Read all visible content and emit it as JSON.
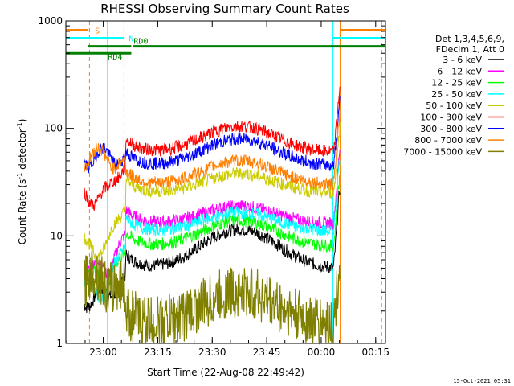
{
  "chart_data": {
    "type": "line",
    "title": "RHESSI Observing Summary Count Rates",
    "xlabel": "Start Time (22-Aug-08 22:49:42)",
    "ylabel_main": "Count Rate (s",
    "ylabel_sup1": "-1",
    "ylabel_mid": " detector",
    "ylabel_sup2": "-1",
    "ylabel_end": ")",
    "y_scale": "log",
    "ylim": [
      1,
      1000
    ],
    "xlim_minutes": [
      0,
      88
    ],
    "x_ticks": [
      {
        "label": "23:00",
        "min": 10.3
      },
      {
        "label": "23:15",
        "min": 25.3
      },
      {
        "label": "23:30",
        "min": 40.3
      },
      {
        "label": "23:45",
        "min": 55.3
      },
      {
        "label": "00:00",
        "min": 70.3
      },
      {
        "label": "00:15",
        "min": 85.3
      }
    ],
    "y_ticks": [
      {
        "label": "1",
        "value": 1
      },
      {
        "label": "10",
        "value": 10
      },
      {
        "label": "100",
        "value": 100
      },
      {
        "label": "1000",
        "value": 1000
      }
    ],
    "legend_header": [
      "Det 1,3,4,5,6,9,",
      "FDecim 1, Att 0"
    ],
    "series": [
      {
        "name": "3 - 6 keV",
        "color": "#000000",
        "night": 2.7,
        "base": 5.0,
        "peak": 11.5,
        "jump": 30
      },
      {
        "name": "6 - 12 keV",
        "color": "#ff00ff",
        "night": 5.0,
        "base": 13.0,
        "peak": 19.0,
        "jump": 70
      },
      {
        "name": "12 - 25 keV",
        "color": "#00ff00",
        "night": 4.0,
        "base": 8.0,
        "peak": 14.0,
        "jump": 40
      },
      {
        "name": "25 - 50 keV",
        "color": "#00ffff",
        "night": 3.2,
        "base": 11.0,
        "peak": 16.5,
        "jump": 60
      },
      {
        "name": "50 - 100 keV",
        "color": "#cccc00",
        "night": 8.0,
        "base": 25.0,
        "peak": 38.0,
        "jump": 110
      },
      {
        "name": "100 - 300 keV",
        "color": "#ff0000",
        "night": 24.0,
        "base": 60.0,
        "peak": 105.0,
        "jump": 260
      },
      {
        "name": "300 - 800 keV",
        "color": "#0000ff",
        "night": 55.0,
        "base": 45.0,
        "peak": 80.0,
        "jump": 200
      },
      {
        "name": "800 - 7000 keV",
        "color": "#ff7f00",
        "night": 55.0,
        "base": 30.0,
        "peak": 50.0,
        "jump": 150
      },
      {
        "name": "7000 - 15000 keV",
        "color": "#808000",
        "night": 4.0,
        "base": 1.5,
        "peak": 3.0,
        "jump": 6
      }
    ],
    "flag_bars": [
      {
        "label": "S",
        "color": "#ff7f00",
        "segments": [
          [
            0,
            6
          ],
          [
            75.5,
            88
          ]
        ],
        "level": 820
      },
      {
        "label": "N",
        "color": "#00ffff",
        "segments": [
          [
            0,
            16
          ],
          [
            73.5,
            88
          ]
        ],
        "level": 690
      },
      {
        "label": "RD0",
        "color": "#008000",
        "segments": [
          [
            6,
            18
          ],
          [
            18.5,
            88
          ]
        ],
        "level": 580
      },
      {
        "label": "RD4",
        "color": "#008000",
        "segments": [
          [
            0,
            18
          ]
        ],
        "level": 500
      }
    ],
    "vertical_markers": [
      {
        "min": 6.5,
        "color": "#ff7f00",
        "style": "dash"
      },
      {
        "min": 16.0,
        "color": "#00ffff",
        "style": "dash"
      },
      {
        "min": 11.5,
        "color": "#00ff00",
        "style": "solid"
      },
      {
        "min": 73.5,
        "color": "#00ffff",
        "style": "solid"
      },
      {
        "min": 75.5,
        "color": "#ff7f00",
        "style": "solid"
      },
      {
        "min": 87.0,
        "color": "#00ffff",
        "style": "dash"
      }
    ],
    "timestamp": "15-Oct-2021 05:31"
  }
}
